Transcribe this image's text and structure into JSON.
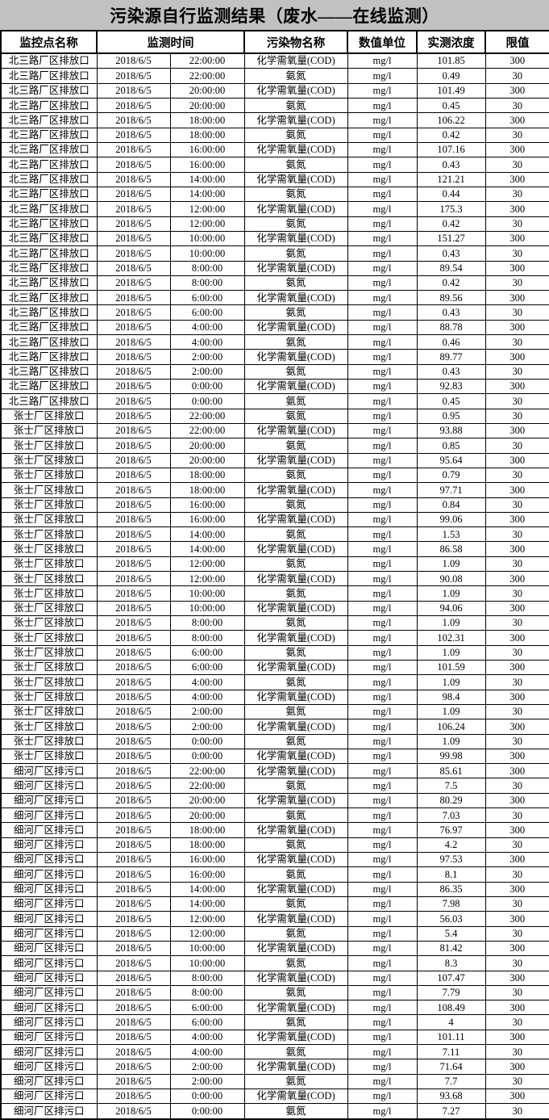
{
  "title": "污染源自行监测结果（废水——在线监测）",
  "colors": {
    "page_background": "#c1c1c1",
    "table_background": "#ffffff",
    "border": "#000000",
    "text": "#000000"
  },
  "table": {
    "headers": {
      "station": "监控点名称",
      "time": "监测时间",
      "pollutant": "污染物名称",
      "unit": "数值单位",
      "measured": "实测浓度",
      "limit": "限值"
    },
    "rows": [
      [
        "北三路厂区排放口",
        "2018/6/5",
        "22:00:00",
        "化学需氧量(COD)",
        "mg/l",
        "101.85",
        "300"
      ],
      [
        "北三路厂区排放口",
        "2018/6/5",
        "22:00:00",
        "氨氮",
        "mg/l",
        "0.49",
        "30"
      ],
      [
        "北三路厂区排放口",
        "2018/6/5",
        "20:00:00",
        "化学需氧量(COD)",
        "mg/l",
        "101.49",
        "300"
      ],
      [
        "北三路厂区排放口",
        "2018/6/5",
        "20:00:00",
        "氨氮",
        "mg/l",
        "0.45",
        "30"
      ],
      [
        "北三路厂区排放口",
        "2018/6/5",
        "18:00:00",
        "化学需氧量(COD)",
        "mg/l",
        "106.22",
        "300"
      ],
      [
        "北三路厂区排放口",
        "2018/6/5",
        "18:00:00",
        "氨氮",
        "mg/l",
        "0.42",
        "30"
      ],
      [
        "北三路厂区排放口",
        "2018/6/5",
        "16:00:00",
        "化学需氧量(COD)",
        "mg/l",
        "107.16",
        "300"
      ],
      [
        "北三路厂区排放口",
        "2018/6/5",
        "16:00:00",
        "氨氮",
        "mg/l",
        "0.43",
        "30"
      ],
      [
        "北三路厂区排放口",
        "2018/6/5",
        "14:00:00",
        "化学需氧量(COD)",
        "mg/l",
        "121.21",
        "300"
      ],
      [
        "北三路厂区排放口",
        "2018/6/5",
        "14:00:00",
        "氨氮",
        "mg/l",
        "0.44",
        "30"
      ],
      [
        "北三路厂区排放口",
        "2018/6/5",
        "12:00:00",
        "化学需氧量(COD)",
        "mg/l",
        "175.3",
        "300"
      ],
      [
        "北三路厂区排放口",
        "2018/6/5",
        "12:00:00",
        "氨氮",
        "mg/l",
        "0.42",
        "30"
      ],
      [
        "北三路厂区排放口",
        "2018/6/5",
        "10:00:00",
        "化学需氧量(COD)",
        "mg/l",
        "151.27",
        "300"
      ],
      [
        "北三路厂区排放口",
        "2018/6/5",
        "10:00:00",
        "氨氮",
        "mg/l",
        "0.43",
        "30"
      ],
      [
        "北三路厂区排放口",
        "2018/6/5",
        "8:00:00",
        "化学需氧量(COD)",
        "mg/l",
        "89.54",
        "300"
      ],
      [
        "北三路厂区排放口",
        "2018/6/5",
        "8:00:00",
        "氨氮",
        "mg/l",
        "0.42",
        "30"
      ],
      [
        "北三路厂区排放口",
        "2018/6/5",
        "6:00:00",
        "化学需氧量(COD)",
        "mg/l",
        "89.56",
        "300"
      ],
      [
        "北三路厂区排放口",
        "2018/6/5",
        "6:00:00",
        "氨氮",
        "mg/l",
        "0.43",
        "30"
      ],
      [
        "北三路厂区排放口",
        "2018/6/5",
        "4:00:00",
        "化学需氧量(COD)",
        "mg/l",
        "88.78",
        "300"
      ],
      [
        "北三路厂区排放口",
        "2018/6/5",
        "4:00:00",
        "氨氮",
        "mg/l",
        "0.46",
        "30"
      ],
      [
        "北三路厂区排放口",
        "2018/6/5",
        "2:00:00",
        "化学需氧量(COD)",
        "mg/l",
        "89.77",
        "300"
      ],
      [
        "北三路厂区排放口",
        "2018/6/5",
        "2:00:00",
        "氨氮",
        "mg/l",
        "0.43",
        "30"
      ],
      [
        "北三路厂区排放口",
        "2018/6/5",
        "0:00:00",
        "化学需氧量(COD)",
        "mg/l",
        "92.83",
        "300"
      ],
      [
        "北三路厂区排放口",
        "2018/6/5",
        "0:00:00",
        "氨氮",
        "mg/l",
        "0.45",
        "30"
      ],
      [
        "张士厂区排放口",
        "2018/6/5",
        "22:00:00",
        "氨氮",
        "mg/l",
        "0.95",
        "30"
      ],
      [
        "张士厂区排放口",
        "2018/6/5",
        "22:00:00",
        "化学需氧量(COD)",
        "mg/l",
        "93.88",
        "300"
      ],
      [
        "张士厂区排放口",
        "2018/6/5",
        "20:00:00",
        "氨氮",
        "mg/l",
        "0.85",
        "30"
      ],
      [
        "张士厂区排放口",
        "2018/6/5",
        "20:00:00",
        "化学需氧量(COD)",
        "mg/l",
        "95.64",
        "300"
      ],
      [
        "张士厂区排放口",
        "2018/6/5",
        "18:00:00",
        "氨氮",
        "mg/l",
        "0.79",
        "30"
      ],
      [
        "张士厂区排放口",
        "2018/6/5",
        "18:00:00",
        "化学需氧量(COD)",
        "mg/l",
        "97.71",
        "300"
      ],
      [
        "张士厂区排放口",
        "2018/6/5",
        "16:00:00",
        "氨氮",
        "mg/l",
        "0.84",
        "30"
      ],
      [
        "张士厂区排放口",
        "2018/6/5",
        "16:00:00",
        "化学需氧量(COD)",
        "mg/l",
        "99.06",
        "300"
      ],
      [
        "张士厂区排放口",
        "2018/6/5",
        "14:00:00",
        "氨氮",
        "mg/l",
        "1.53",
        "30"
      ],
      [
        "张士厂区排放口",
        "2018/6/5",
        "14:00:00",
        "化学需氧量(COD)",
        "mg/l",
        "86.58",
        "300"
      ],
      [
        "张士厂区排放口",
        "2018/6/5",
        "12:00:00",
        "氨氮",
        "mg/l",
        "1.09",
        "30"
      ],
      [
        "张士厂区排放口",
        "2018/6/5",
        "12:00:00",
        "化学需氧量(COD)",
        "mg/l",
        "90.08",
        "300"
      ],
      [
        "张士厂区排放口",
        "2018/6/5",
        "10:00:00",
        "氨氮",
        "mg/l",
        "1.09",
        "30"
      ],
      [
        "张士厂区排放口",
        "2018/6/5",
        "10:00:00",
        "化学需氧量(COD)",
        "mg/l",
        "94.06",
        "300"
      ],
      [
        "张士厂区排放口",
        "2018/6/5",
        "8:00:00",
        "氨氮",
        "mg/l",
        "1.09",
        "30"
      ],
      [
        "张士厂区排放口",
        "2018/6/5",
        "8:00:00",
        "化学需氧量(COD)",
        "mg/l",
        "102.31",
        "300"
      ],
      [
        "张士厂区排放口",
        "2018/6/5",
        "6:00:00",
        "氨氮",
        "mg/l",
        "1.09",
        "30"
      ],
      [
        "张士厂区排放口",
        "2018/6/5",
        "6:00:00",
        "化学需氧量(COD)",
        "mg/l",
        "101.59",
        "300"
      ],
      [
        "张士厂区排放口",
        "2018/6/5",
        "4:00:00",
        "氨氮",
        "mg/l",
        "1.09",
        "30"
      ],
      [
        "张士厂区排放口",
        "2018/6/5",
        "4:00:00",
        "化学需氧量(COD)",
        "mg/l",
        "98.4",
        "300"
      ],
      [
        "张士厂区排放口",
        "2018/6/5",
        "2:00:00",
        "氨氮",
        "mg/l",
        "1.09",
        "30"
      ],
      [
        "张士厂区排放口",
        "2018/6/5",
        "2:00:00",
        "化学需氧量(COD)",
        "mg/l",
        "106.24",
        "300"
      ],
      [
        "张士厂区排放口",
        "2018/6/5",
        "0:00:00",
        "氨氮",
        "mg/l",
        "1.09",
        "30"
      ],
      [
        "张士厂区排放口",
        "2018/6/5",
        "0:00:00",
        "化学需氧量(COD)",
        "mg/l",
        "99.98",
        "300"
      ],
      [
        "细河厂区排污口",
        "2018/6/5",
        "22:00:00",
        "化学需氧量(COD)",
        "mg/l",
        "85.61",
        "300"
      ],
      [
        "细河厂区排污口",
        "2018/6/5",
        "22:00:00",
        "氨氮",
        "mg/l",
        "7.5",
        "30"
      ],
      [
        "细河厂区排污口",
        "2018/6/5",
        "20:00:00",
        "化学需氧量(COD)",
        "mg/l",
        "80.29",
        "300"
      ],
      [
        "细河厂区排污口",
        "2018/6/5",
        "20:00:00",
        "氨氮",
        "mg/l",
        "7.03",
        "30"
      ],
      [
        "细河厂区排污口",
        "2018/6/5",
        "18:00:00",
        "化学需氧量(COD)",
        "mg/l",
        "76.97",
        "300"
      ],
      [
        "细河厂区排污口",
        "2018/6/5",
        "18:00:00",
        "氨氮",
        "mg/l",
        "4.2",
        "30"
      ],
      [
        "细河厂区排污口",
        "2018/6/5",
        "16:00:00",
        "化学需氧量(COD)",
        "mg/l",
        "97.53",
        "300"
      ],
      [
        "细河厂区排污口",
        "2018/6/5",
        "16:00:00",
        "氨氮",
        "mg/l",
        "8.1",
        "30"
      ],
      [
        "细河厂区排污口",
        "2018/6/5",
        "14:00:00",
        "化学需氧量(COD)",
        "mg/l",
        "86.35",
        "300"
      ],
      [
        "细河厂区排污口",
        "2018/6/5",
        "14:00:00",
        "氨氮",
        "mg/l",
        "7.98",
        "30"
      ],
      [
        "细河厂区排污口",
        "2018/6/5",
        "12:00:00",
        "化学需氧量(COD)",
        "mg/l",
        "56.03",
        "300"
      ],
      [
        "细河厂区排污口",
        "2018/6/5",
        "12:00:00",
        "氨氮",
        "mg/l",
        "5.4",
        "30"
      ],
      [
        "细河厂区排污口",
        "2018/6/5",
        "10:00:00",
        "化学需氧量(COD)",
        "mg/l",
        "81.42",
        "300"
      ],
      [
        "细河厂区排污口",
        "2018/6/5",
        "10:00:00",
        "氨氮",
        "mg/l",
        "8.3",
        "30"
      ],
      [
        "细河厂区排污口",
        "2018/6/5",
        "8:00:00",
        "化学需氧量(COD)",
        "mg/l",
        "107.47",
        "300"
      ],
      [
        "细河厂区排污口",
        "2018/6/5",
        "8:00:00",
        "氨氮",
        "mg/l",
        "7.79",
        "30"
      ],
      [
        "细河厂区排污口",
        "2018/6/5",
        "6:00:00",
        "化学需氧量(COD)",
        "mg/l",
        "108.49",
        "300"
      ],
      [
        "细河厂区排污口",
        "2018/6/5",
        "6:00:00",
        "氨氮",
        "mg/l",
        "4",
        "30"
      ],
      [
        "细河厂区排污口",
        "2018/6/5",
        "4:00:00",
        "化学需氧量(COD)",
        "mg/l",
        "101.11",
        "300"
      ],
      [
        "细河厂区排污口",
        "2018/6/5",
        "4:00:00",
        "氨氮",
        "mg/l",
        "7.11",
        "30"
      ],
      [
        "细河厂区排污口",
        "2018/6/5",
        "2:00:00",
        "化学需氧量(COD)",
        "mg/l",
        "71.64",
        "300"
      ],
      [
        "细河厂区排污口",
        "2018/6/5",
        "2:00:00",
        "氨氮",
        "mg/l",
        "7.7",
        "30"
      ],
      [
        "细河厂区排污口",
        "2018/6/5",
        "0:00:00",
        "化学需氧量(COD)",
        "mg/l",
        "93.68",
        "300"
      ],
      [
        "细河厂区排污口",
        "2018/6/5",
        "0:00:00",
        "氨氮",
        "mg/l",
        "7.27",
        "30"
      ]
    ]
  }
}
